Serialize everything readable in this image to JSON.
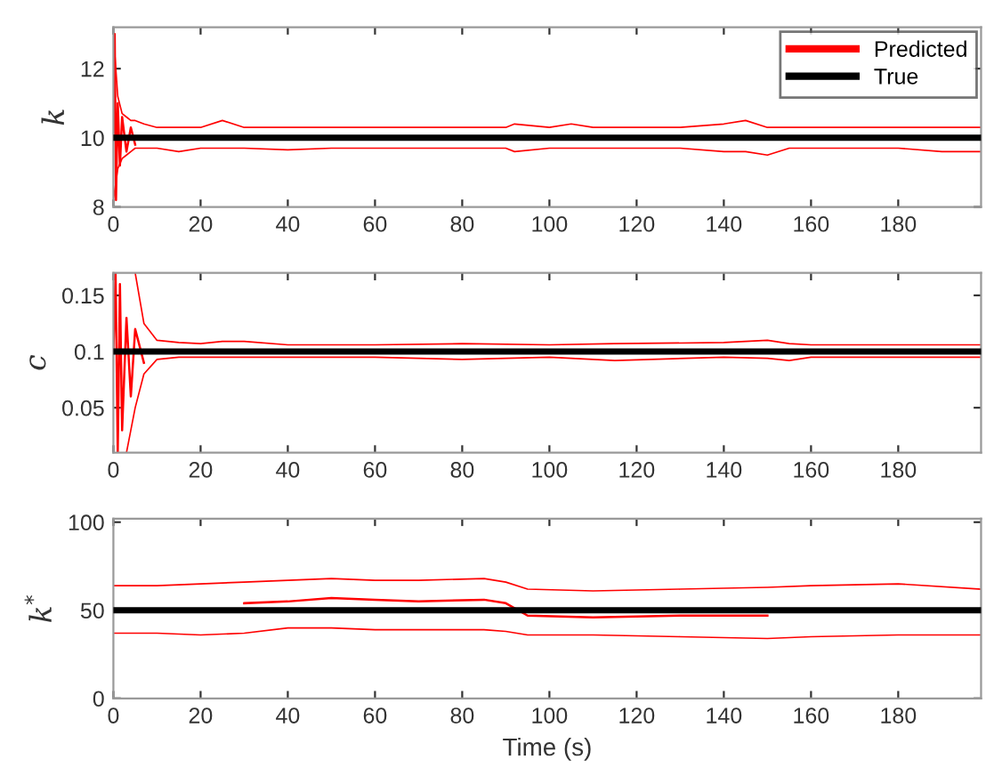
{
  "chart_data": [
    {
      "type": "line",
      "ylabel": "k",
      "xlim": [
        0,
        199
      ],
      "xticks": [
        0,
        20,
        40,
        60,
        80,
        100,
        120,
        140,
        160,
        180
      ],
      "ylim": [
        8,
        13.2
      ],
      "yticks": [
        8,
        10,
        12
      ],
      "grid": false,
      "legend": "top right",
      "series": [
        {
          "name": "Predicted",
          "color": "#ff0000",
          "x": [
            0,
            0.3,
            0.6,
            1,
            1.5,
            2,
            3,
            4,
            5
          ],
          "values": [
            10,
            13,
            8.2,
            11,
            9.2,
            10.6,
            9.6,
            10.3,
            9.8
          ]
        },
        {
          "color": "#ff0000",
          "x": [
            0,
            1,
            2,
            3,
            4,
            5,
            7,
            10,
            15,
            20,
            25,
            30,
            40,
            50,
            60,
            70,
            80,
            90,
            92,
            100,
            105,
            110,
            120,
            130,
            140,
            145,
            150,
            155,
            160,
            170,
            180,
            190,
            199
          ],
          "values": [
            13,
            11.2,
            10.7,
            10.6,
            10.5,
            10.5,
            10.4,
            10.3,
            10.3,
            10.3,
            10.5,
            10.3,
            10.3,
            10.3,
            10.3,
            10.3,
            10.3,
            10.3,
            10.4,
            10.3,
            10.4,
            10.3,
            10.3,
            10.3,
            10.4,
            10.5,
            10.3,
            10.3,
            10.3,
            10.3,
            10.3,
            10.3,
            10.3
          ]
        },
        {
          "color": "#ff0000",
          "x": [
            0,
            1,
            2,
            3,
            4,
            5,
            7,
            10,
            15,
            20,
            25,
            30,
            40,
            50,
            60,
            70,
            80,
            90,
            92,
            100,
            105,
            110,
            120,
            130,
            140,
            145,
            150,
            155,
            160,
            170,
            180,
            190,
            199
          ],
          "values": [
            8.2,
            9.1,
            9.4,
            9.5,
            9.6,
            9.7,
            9.7,
            9.7,
            9.6,
            9.7,
            9.7,
            9.7,
            9.65,
            9.7,
            9.7,
            9.7,
            9.7,
            9.7,
            9.6,
            9.7,
            9.7,
            9.7,
            9.7,
            9.7,
            9.6,
            9.6,
            9.5,
            9.7,
            9.7,
            9.7,
            9.7,
            9.6,
            9.6
          ]
        },
        {
          "name": "True",
          "color": "#000000",
          "x": [
            0,
            199
          ],
          "values": [
            10,
            10
          ]
        }
      ]
    },
    {
      "type": "line",
      "ylabel": "c",
      "xlim": [
        0,
        199
      ],
      "xticks": [
        0,
        20,
        40,
        60,
        80,
        100,
        120,
        140,
        160,
        180
      ],
      "ylim": [
        0.01,
        0.17
      ],
      "yticks": [
        0.05,
        0.1,
        0.15
      ],
      "grid": false,
      "series": [
        {
          "color": "#ff0000",
          "x": [
            0,
            0.5,
            1,
            1.5,
            2,
            3,
            4,
            5,
            7
          ],
          "values": [
            0.1,
            0.17,
            0.01,
            0.16,
            0.03,
            0.13,
            0.06,
            0.12,
            0.09
          ]
        },
        {
          "color": "#ff0000",
          "x": [
            5,
            7,
            10,
            15,
            20,
            25,
            30,
            40,
            60,
            80,
            100,
            115,
            140,
            150,
            155,
            160,
            180,
            199
          ],
          "values": [
            0.17,
            0.125,
            0.11,
            0.108,
            0.107,
            0.109,
            0.109,
            0.106,
            0.106,
            0.107,
            0.106,
            0.107,
            0.108,
            0.11,
            0.107,
            0.106,
            0.106,
            0.106
          ]
        },
        {
          "color": "#ff0000",
          "x": [
            3,
            4,
            5,
            7,
            10,
            15,
            20,
            25,
            30,
            40,
            60,
            80,
            100,
            115,
            140,
            150,
            155,
            160,
            180,
            199
          ],
          "values": [
            0.01,
            0.03,
            0.05,
            0.08,
            0.093,
            0.095,
            0.095,
            0.095,
            0.095,
            0.095,
            0.095,
            0.093,
            0.095,
            0.092,
            0.095,
            0.094,
            0.092,
            0.095,
            0.095,
            0.095
          ]
        },
        {
          "color": "#000000",
          "x": [
            0,
            199
          ],
          "values": [
            0.1,
            0.1
          ]
        }
      ]
    },
    {
      "type": "line",
      "ylabel": "k$^{*}$",
      "xlabel": "Time (s)",
      "xlim": [
        0,
        199
      ],
      "xticks": [
        0,
        20,
        40,
        60,
        80,
        100,
        120,
        140,
        160,
        180
      ],
      "ylim": [
        0,
        102
      ],
      "yticks": [
        0,
        50,
        100
      ],
      "grid": false,
      "series": [
        {
          "color": "#ff0000",
          "x": [
            30,
            40,
            50,
            60,
            70,
            85,
            90,
            95,
            110,
            130,
            150
          ],
          "values": [
            54,
            55,
            57,
            56,
            55,
            56,
            54,
            47,
            46,
            47,
            47
          ]
        },
        {
          "color": "#ff0000",
          "x": [
            0,
            10,
            20,
            30,
            40,
            50,
            60,
            70,
            85,
            90,
            95,
            110,
            130,
            150,
            160,
            180,
            199
          ],
          "values": [
            64,
            64,
            65,
            66,
            67,
            68,
            67,
            67,
            68,
            66,
            62,
            61,
            62,
            63,
            64,
            65,
            62
          ]
        },
        {
          "color": "#ff0000",
          "x": [
            0,
            10,
            20,
            30,
            40,
            50,
            60,
            70,
            85,
            90,
            95,
            110,
            130,
            150,
            160,
            180,
            199
          ],
          "values": [
            37,
            37,
            36,
            37,
            40,
            40,
            39,
            39,
            39,
            38,
            36,
            36,
            35,
            34,
            35,
            36,
            36
          ]
        },
        {
          "color": "#000000",
          "x": [
            0,
            199
          ],
          "values": [
            50,
            50
          ]
        }
      ]
    }
  ]
}
